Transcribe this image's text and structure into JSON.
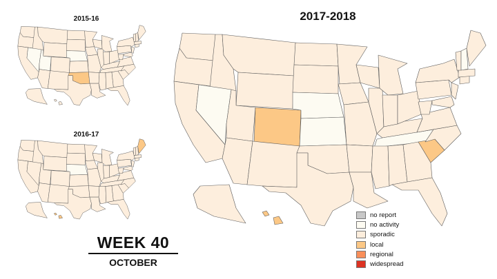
{
  "titles": {
    "small_top": "2015-16",
    "small_bottom": "2016-17",
    "big": "2017-2018"
  },
  "week": {
    "label": "WEEK 40",
    "month": "OCTOBER"
  },
  "legend": [
    {
      "label": "no report",
      "color": "#c8c8c8"
    },
    {
      "label": "no activity",
      "color": "#fdfbf2"
    },
    {
      "label": "sporadic",
      "color": "#fdeedd"
    },
    {
      "label": "local",
      "color": "#fcc886"
    },
    {
      "label": "regional",
      "color": "#f98f5a"
    },
    {
      "label": "widespread",
      "color": "#dc3323"
    }
  ],
  "maps": [
    {
      "season": "2015-16",
      "default_level": "sporadic",
      "states": {
        "OK": "local",
        "NV": "no activity",
        "UT": "no activity",
        "NE": "no activity",
        "AK": "sporadic",
        "HI": "sporadic"
      }
    },
    {
      "season": "2016-17",
      "default_level": "sporadic",
      "states": {
        "ME": "local",
        "HI": "local",
        "NE": "no activity",
        "AK": "sporadic"
      }
    },
    {
      "season": "2017-2018",
      "default_level": "sporadic",
      "states": {
        "CO": "local",
        "SC": "local",
        "NV": "no activity",
        "NE": "no activity",
        "KS": "no activity",
        "TN": "no activity",
        "NH": "no activity",
        "AK": "sporadic",
        "HI": "local"
      }
    }
  ]
}
